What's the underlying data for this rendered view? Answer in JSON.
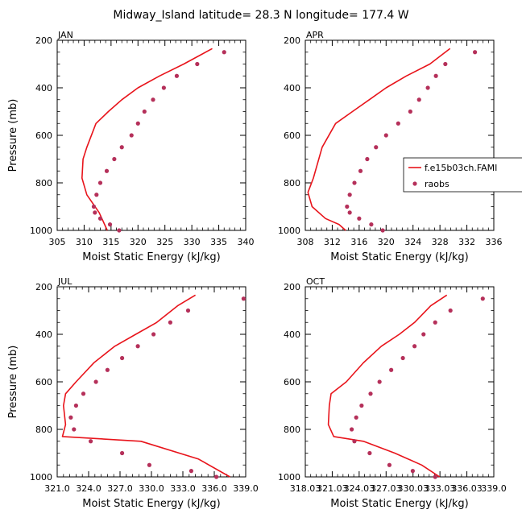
{
  "title": "Midway_Island  latitude= 28.3 N longitude= 177.4 W",
  "colors": {
    "model": "#e8141b",
    "raobs": "#b5305a",
    "axis": "#000000"
  },
  "chart_data": [
    {
      "type": "line",
      "panel_label": "JAN",
      "xlabel": "Moist Static Energy (kJ/kg)",
      "ylabel": "Pressure (mb)",
      "xlim": [
        305,
        340
      ],
      "ylim": [
        1000,
        200
      ],
      "xticks": [
        305,
        310,
        315,
        320,
        325,
        330,
        335,
        340
      ],
      "xtick_labels": [
        "305",
        "310",
        "315",
        "320",
        "325",
        "330",
        "335",
        "340"
      ],
      "yticks": [
        200,
        400,
        600,
        800,
        1000
      ],
      "ytick_labels": [
        "200",
        "400",
        "600",
        "800",
        "1000"
      ],
      "series": [
        {
          "style": "line",
          "x": [
            333.8,
            328.5,
            324.0,
            320.0,
            317.0,
            314.5,
            312.2,
            310.5,
            309.8,
            309.6,
            310.5,
            312.8,
            314.3
          ],
          "y": [
            235,
            300,
            350,
            400,
            450,
            500,
            550,
            650,
            700,
            780,
            850,
            925,
            1000
          ]
        },
        {
          "style": "points",
          "x": [
            336.0,
            331.0,
            327.2,
            324.8,
            322.8,
            321.2,
            320.0,
            318.8,
            317.0,
            315.6,
            314.2,
            313.0,
            312.3,
            311.8,
            312.0,
            313.0,
            314.8,
            316.5
          ],
          "y": [
            250,
            300,
            350,
            400,
            450,
            500,
            550,
            600,
            650,
            700,
            750,
            800,
            850,
            900,
            925,
            950,
            975,
            1000
          ]
        }
      ]
    },
    {
      "type": "line",
      "panel_label": "APR",
      "xlabel": "Moist Static Energy (kJ/kg)",
      "ylabel": "",
      "xlim": [
        308,
        336
      ],
      "ylim": [
        1000,
        200
      ],
      "xticks": [
        308,
        312,
        316,
        320,
        324,
        328,
        332,
        336
      ],
      "xtick_labels": [
        "308",
        "312",
        "316",
        "320",
        "324",
        "328",
        "332",
        "336"
      ],
      "yticks": [
        200,
        400,
        600,
        800,
        1000
      ],
      "ytick_labels": [
        "200",
        "400",
        "600",
        "800",
        "1000"
      ],
      "legend": {
        "placement": "right",
        "entries": [
          "f.e15b03ch.FAMI",
          "raobs"
        ]
      },
      "series": [
        {
          "name": "f.e15b03ch.FAMI",
          "style": "line",
          "x": [
            329.5,
            326.5,
            323.0,
            320.0,
            317.5,
            315.0,
            312.5,
            310.5,
            309.2,
            308.4,
            309.0,
            311.0,
            313.0,
            314.0
          ],
          "y": [
            235,
            300,
            350,
            400,
            450,
            500,
            550,
            650,
            780,
            840,
            900,
            950,
            975,
            1000
          ]
        },
        {
          "name": "raobs",
          "style": "points",
          "x": [
            333.2,
            328.8,
            327.4,
            326.2,
            324.9,
            323.6,
            321.8,
            320.0,
            318.5,
            317.2,
            316.2,
            315.3,
            314.6,
            314.2,
            314.6,
            316.0,
            317.8,
            319.5
          ],
          "y": [
            250,
            300,
            350,
            400,
            450,
            500,
            550,
            600,
            650,
            700,
            750,
            800,
            850,
            900,
            925,
            950,
            975,
            1000
          ]
        }
      ]
    },
    {
      "type": "line",
      "panel_label": "JUL",
      "xlabel": "Moist Static Energy (kJ/kg)",
      "ylabel": "Pressure (mb)",
      "xlim": [
        321,
        339
      ],
      "ylim": [
        1000,
        200
      ],
      "xticks": [
        321,
        324,
        327,
        330,
        333,
        336,
        339
      ],
      "xtick_labels": [
        "321.0",
        "324.0",
        "327.0",
        "330.0",
        "333.0",
        "336.0",
        "339.0"
      ],
      "yticks": [
        200,
        400,
        600,
        800,
        1000
      ],
      "ytick_labels": [
        "200",
        "400",
        "600",
        "800",
        "1000"
      ],
      "series": [
        {
          "style": "line",
          "x": [
            334.2,
            332.5,
            330.5,
            328.5,
            326.5,
            324.5,
            322.8,
            321.8,
            321.6,
            321.8,
            321.5,
            329.0,
            334.5,
            337.5
          ],
          "y": [
            235,
            280,
            350,
            400,
            450,
            520,
            600,
            650,
            700,
            780,
            830,
            850,
            925,
            1000
          ]
        },
        {
          "style": "points",
          "x": [
            338.8,
            333.5,
            331.8,
            330.2,
            328.7,
            327.2,
            325.8,
            324.7,
            323.5,
            322.8,
            322.3,
            322.6,
            324.2,
            327.2,
            329.8,
            333.8,
            336.2
          ],
          "y": [
            250,
            300,
            350,
            400,
            450,
            500,
            550,
            600,
            650,
            700,
            750,
            800,
            850,
            900,
            950,
            975,
            1000
          ]
        }
      ]
    },
    {
      "type": "line",
      "panel_label": "OCT",
      "xlabel": "Moist Static Energy (kJ/kg)",
      "ylabel": "",
      "xlim": [
        318.03,
        339.03
      ],
      "ylim": [
        1000,
        200
      ],
      "xticks": [
        318.03,
        321.03,
        324.03,
        327.03,
        330.03,
        333.03,
        336.03,
        339.03
      ],
      "xtick_labels": [
        "318.03",
        "321.03",
        "324.03",
        "327.03",
        "330.03",
        "333.03",
        "336.03",
        "339.0"
      ],
      "yticks": [
        200,
        400,
        600,
        800,
        1000
      ],
      "ytick_labels": [
        "200",
        "400",
        "600",
        "800",
        "1000"
      ],
      "series": [
        {
          "style": "line",
          "x": [
            333.8,
            332.0,
            330.2,
            328.5,
            326.5,
            324.5,
            322.6,
            320.9,
            320.7,
            320.6,
            321.2,
            324.5,
            328.0,
            331.0,
            333.0
          ],
          "y": [
            235,
            280,
            350,
            400,
            450,
            520,
            600,
            650,
            700,
            780,
            830,
            850,
            900,
            950,
            1000
          ]
        },
        {
          "style": "points",
          "x": [
            337.8,
            334.2,
            332.5,
            331.2,
            330.2,
            328.9,
            327.6,
            326.3,
            325.3,
            324.3,
            323.7,
            323.2,
            323.5,
            325.2,
            327.4,
            330.0,
            332.5
          ],
          "y": [
            250,
            300,
            350,
            400,
            450,
            500,
            550,
            600,
            650,
            700,
            750,
            800,
            850,
            900,
            950,
            975,
            1000
          ]
        }
      ]
    }
  ]
}
